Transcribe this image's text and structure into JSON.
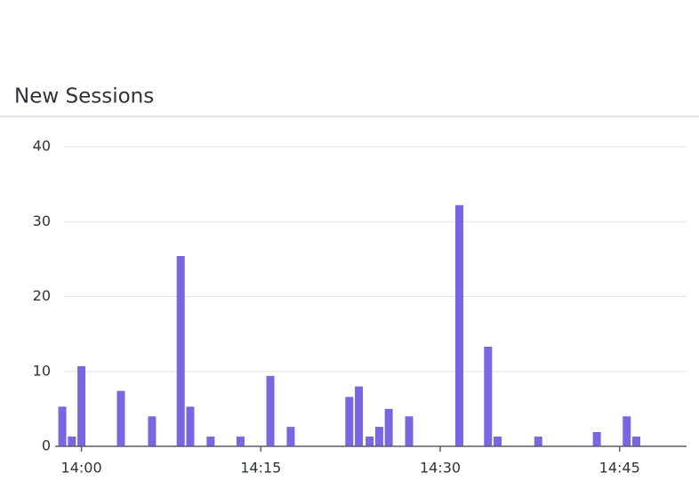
{
  "chart_data": {
    "type": "bar",
    "title": "New Sessions",
    "x": [
      -1.6,
      -0.8,
      0,
      3.3,
      5.9,
      8.3,
      9.1,
      10.8,
      13.3,
      15.8,
      17.5,
      22.4,
      23.2,
      24.1,
      24.9,
      25.7,
      27.4,
      31.6,
      34.0,
      34.8,
      38.2,
      43.1,
      45.6,
      46.4
    ],
    "values": [
      5.3,
      1.3,
      10.7,
      7.4,
      4.0,
      25.4,
      5.3,
      1.3,
      1.3,
      9.4,
      2.6,
      6.6,
      8.0,
      1.3,
      2.6,
      5.0,
      4.0,
      32.2,
      13.3,
      1.3,
      1.3,
      1.9,
      4.0,
      1.3
    ],
    "color": "#7a66e0",
    "xlim": [
      -2.2,
      50.6
    ],
    "xticks": [
      {
        "value": 0,
        "label": "14:00"
      },
      {
        "value": 15,
        "label": "14:15"
      },
      {
        "value": 30,
        "label": "14:30"
      },
      {
        "value": 45,
        "label": "14:45"
      }
    ],
    "ylim": [
      0,
      40
    ],
    "yticks": [
      0,
      10,
      20,
      30,
      40
    ],
    "grid": true
  }
}
